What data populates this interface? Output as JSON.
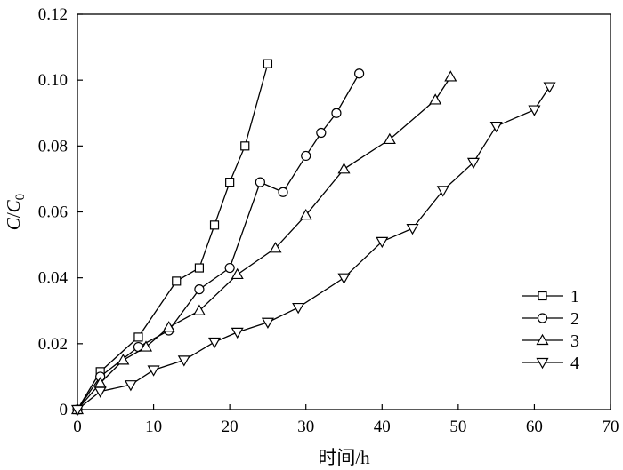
{
  "chart_data": {
    "type": "line",
    "title": "",
    "xlabel": "时间/h",
    "ylabel": {
      "main": "C",
      "sep": "/",
      "sub_base": "C",
      "sub_index": "0"
    },
    "xlim": [
      0,
      70
    ],
    "ylim": [
      0,
      0.12
    ],
    "x_ticks": [
      0,
      10,
      20,
      30,
      40,
      50,
      60,
      70
    ],
    "x_tick_labels": [
      "0",
      "10",
      "20",
      "30",
      "40",
      "50",
      "60",
      "70"
    ],
    "y_ticks": [
      0,
      0.02,
      0.04,
      0.06,
      0.08,
      0.1,
      0.12
    ],
    "y_tick_labels": [
      "0",
      "0.02",
      "0.04",
      "0.06",
      "0.08",
      "0.10",
      "0.12"
    ],
    "grid": false,
    "legend_position": "lower-right",
    "series": [
      {
        "name": "1",
        "marker": "square",
        "x": [
          0,
          3,
          8,
          13,
          16,
          18,
          20,
          22,
          25
        ],
        "y": [
          0,
          0.0115,
          0.022,
          0.039,
          0.043,
          0.056,
          0.069,
          0.08,
          0.105
        ]
      },
      {
        "name": "2",
        "marker": "circle",
        "x": [
          0,
          3,
          8,
          12,
          16,
          20,
          24,
          27,
          30,
          32,
          34,
          37
        ],
        "y": [
          0,
          0.01,
          0.019,
          0.024,
          0.0365,
          0.043,
          0.069,
          0.066,
          0.077,
          0.084,
          0.09,
          0.102
        ]
      },
      {
        "name": "3",
        "marker": "triangle-up",
        "x": [
          0,
          3,
          6,
          9,
          12,
          16,
          21,
          26,
          30,
          35,
          41,
          47,
          49
        ],
        "y": [
          0,
          0.008,
          0.015,
          0.019,
          0.025,
          0.03,
          0.041,
          0.049,
          0.059,
          0.073,
          0.082,
          0.094,
          0.101
        ]
      },
      {
        "name": "4",
        "marker": "triangle-down",
        "x": [
          0,
          3,
          7,
          10,
          14,
          18,
          21,
          25,
          29,
          35,
          40,
          44,
          48,
          52,
          55,
          60,
          62
        ],
        "y": [
          0,
          0.0055,
          0.0075,
          0.012,
          0.015,
          0.0205,
          0.0235,
          0.0265,
          0.031,
          0.04,
          0.051,
          0.055,
          0.0665,
          0.075,
          0.086,
          0.091,
          0.098
        ]
      }
    ]
  }
}
